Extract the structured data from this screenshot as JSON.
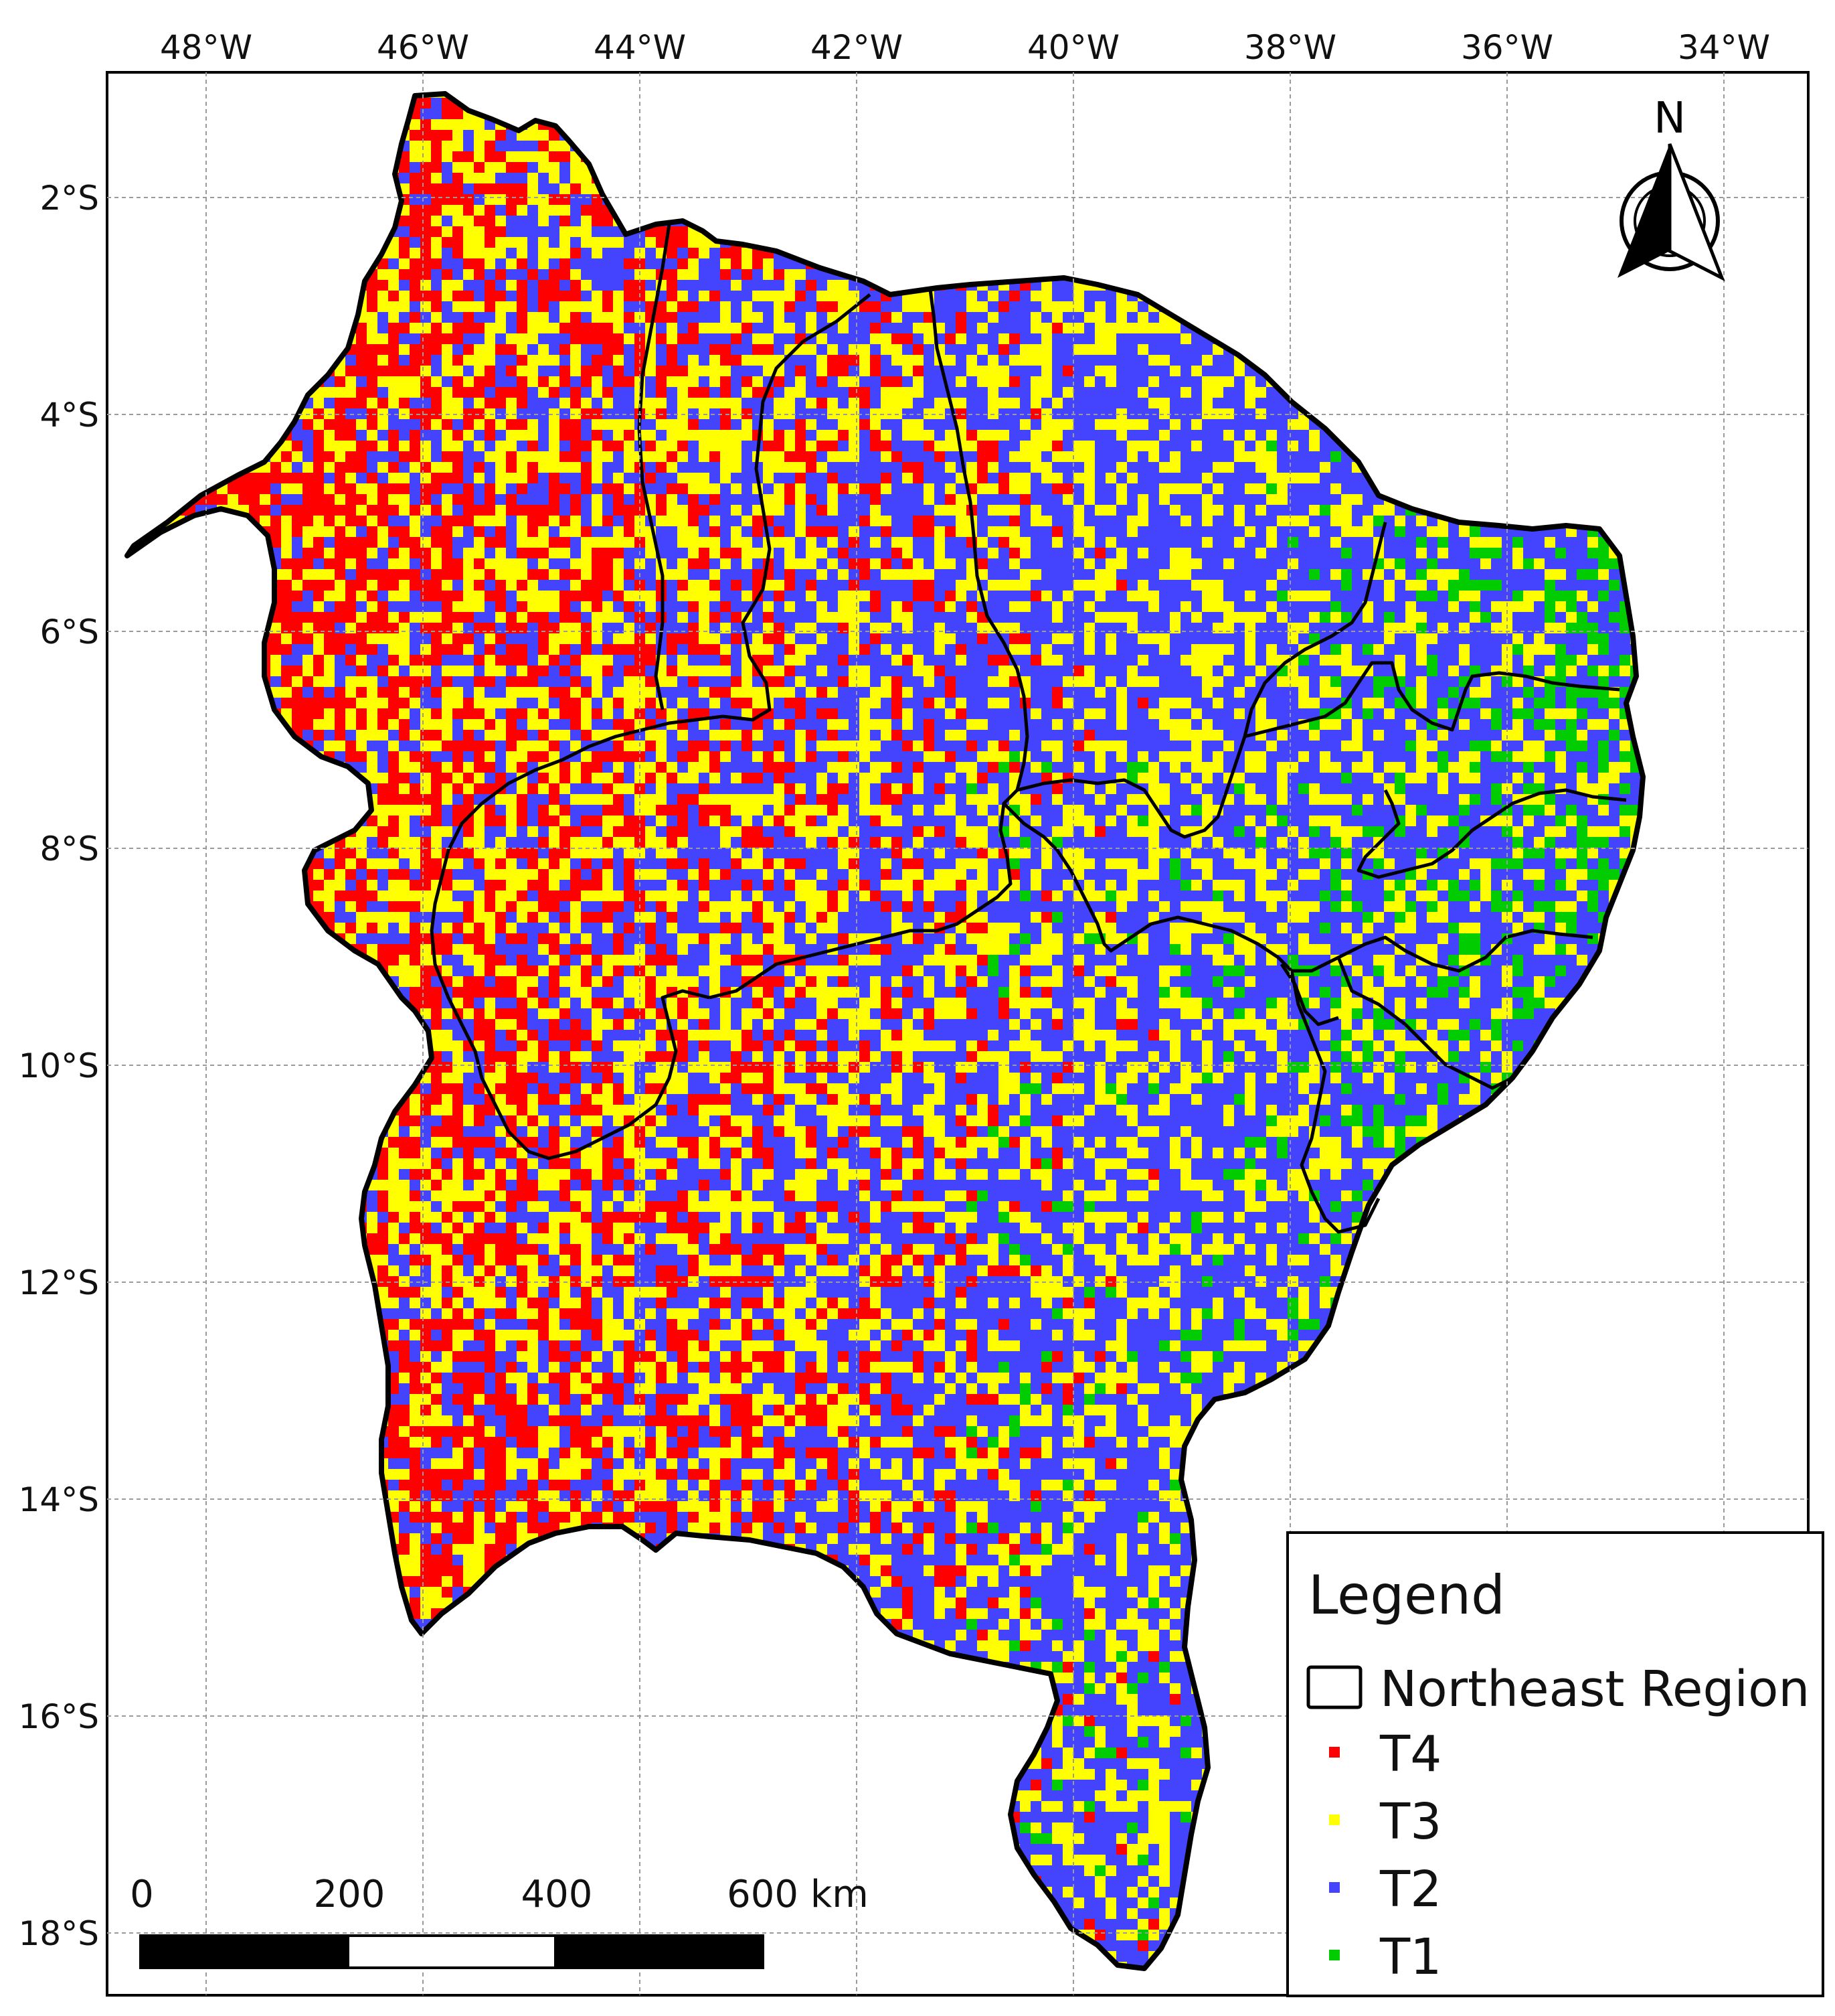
{
  "map": {
    "lon_ticks": [
      "48°W",
      "46°W",
      "44°W",
      "42°W",
      "40°W",
      "38°W",
      "36°W",
      "34°W"
    ],
    "lat_ticks": [
      "2°S",
      "4°S",
      "6°S",
      "8°S",
      "10°S",
      "12°S",
      "14°S",
      "16°S",
      "18°S"
    ],
    "lon_values": [
      -48,
      -46,
      -44,
      -42,
      -40,
      -38,
      -36,
      -34
    ],
    "lat_values": [
      -2,
      -4,
      -6,
      -8,
      -10,
      -12,
      -14,
      -16,
      -18
    ],
    "extent": {
      "lon_min": -48.9,
      "lon_max": -33.2,
      "lat_min": -18.5,
      "lat_max": -0.6
    },
    "grid": true
  },
  "north_arrow": {
    "label": "N"
  },
  "legend": {
    "title": "Legend",
    "items": [
      {
        "label": "Northeast Region",
        "symbol": "outline",
        "color": "#000000"
      },
      {
        "label": "T4",
        "symbol": "square",
        "color": "#ff0000"
      },
      {
        "label": "T3",
        "symbol": "square",
        "color": "#ffff00"
      },
      {
        "label": "T2",
        "symbol": "square",
        "color": "#4444ff"
      },
      {
        "label": "T1",
        "symbol": "square",
        "color": "#00cc00"
      }
    ]
  },
  "scale_bar": {
    "labels": [
      "0",
      "200",
      "400",
      "600 km"
    ],
    "values_km": [
      0,
      200,
      400,
      600
    ]
  },
  "colors": {
    "T4": "#ff0000",
    "T3": "#ffff00",
    "T2": "#4444ff",
    "T1": "#00cc00",
    "border": "#000000",
    "grid": "#9a9a9a"
  }
}
